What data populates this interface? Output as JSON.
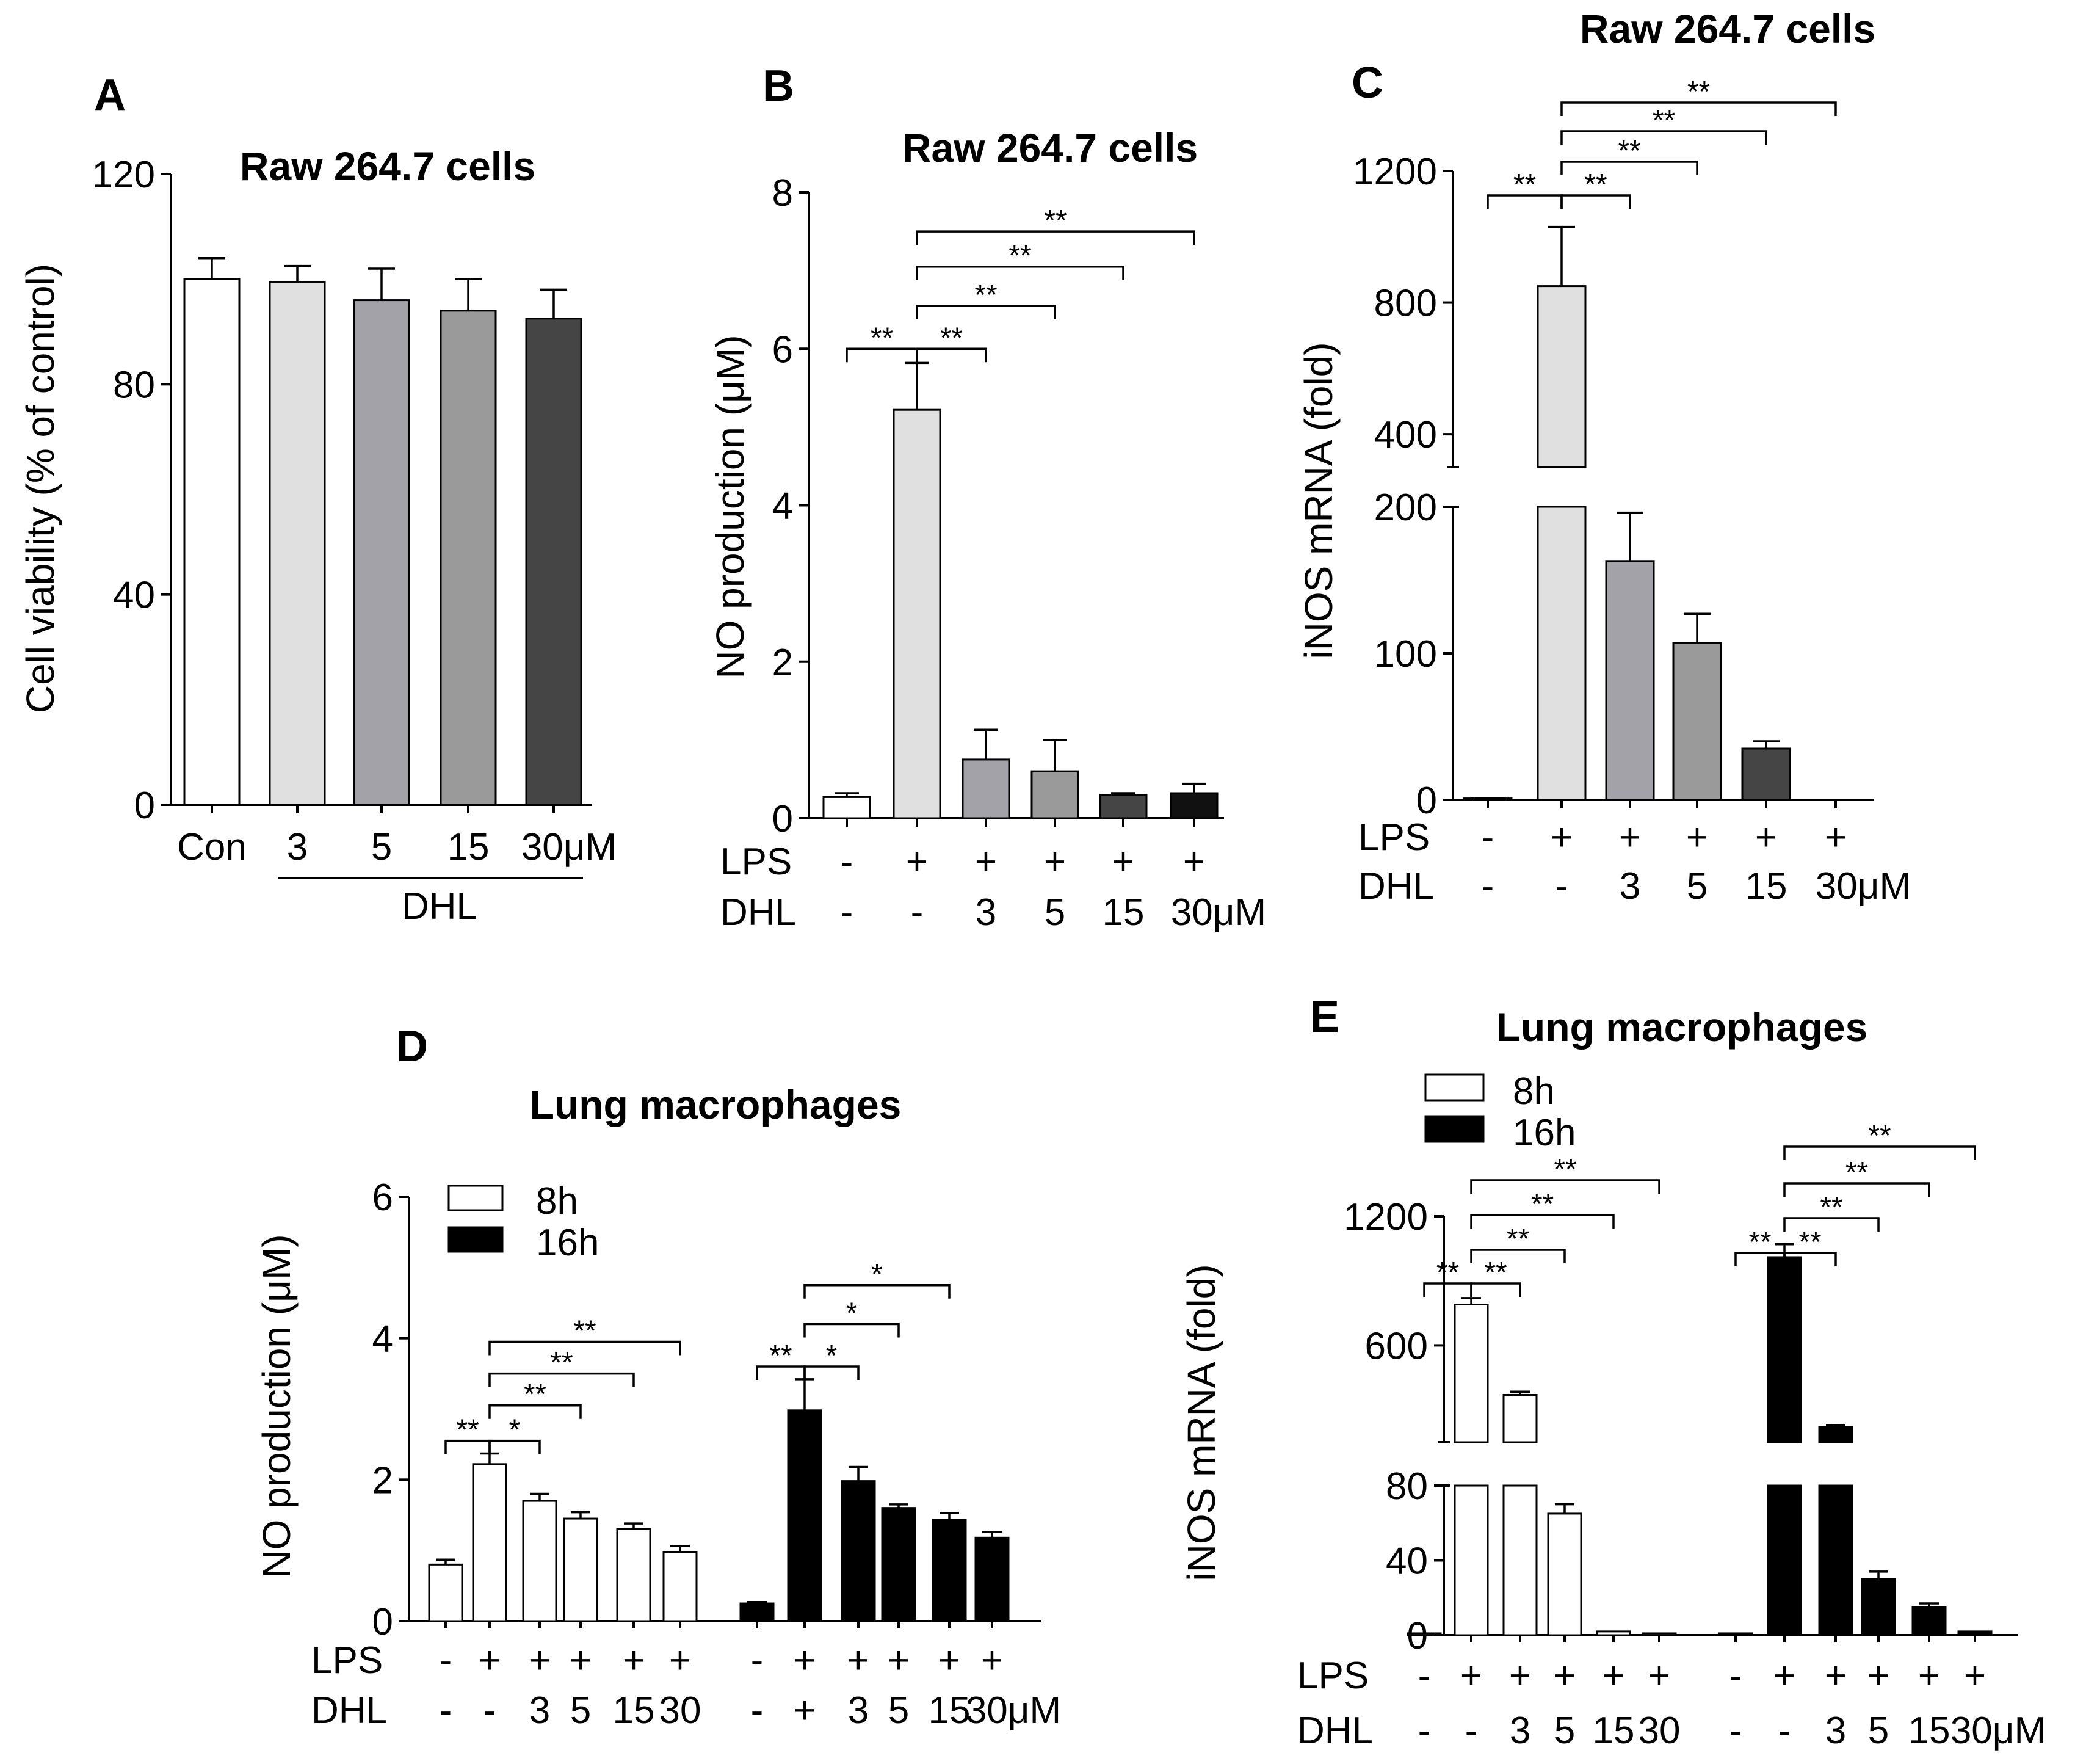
{
  "chart_data": [
    {
      "panel": "A",
      "type": "bar",
      "title": "Raw 264.7 cells",
      "ylabel": "Cell viability (% of control)",
      "ylim": [
        0,
        120
      ],
      "yticks": [
        "0",
        "40",
        "80",
        "120"
      ],
      "categories": [
        "Con",
        "3",
        "5",
        "15",
        "30μM"
      ],
      "group_label": "DHL",
      "values": [
        100,
        99.5,
        96,
        94,
        92.5
      ],
      "errors": [
        4,
        3,
        6,
        6,
        5.5
      ],
      "colors": [
        "#ffffff",
        "#e0e0e0",
        "#a2a2a8",
        "#9a9a9a",
        "#454545"
      ]
    },
    {
      "panel": "B",
      "type": "bar",
      "title": "Raw 264.7 cells",
      "ylabel": "NO production (μM)",
      "ylim": [
        0,
        8
      ],
      "yticks": [
        "0",
        "2",
        "4",
        "6",
        "8"
      ],
      "rows": [
        {
          "label": "LPS",
          "values": [
            "-",
            "+",
            "+",
            "+",
            "+",
            "+"
          ]
        },
        {
          "label": "DHL",
          "values": [
            "-",
            "-",
            "3",
            "5",
            "15",
            "30μM"
          ]
        }
      ],
      "values": [
        0.27,
        5.22,
        0.75,
        0.6,
        0.3,
        0.32
      ],
      "errors": [
        0.05,
        0.6,
        0.38,
        0.4,
        0.02,
        0.12
      ],
      "colors": [
        "#ffffff",
        "#e0e0e0",
        "#a2a2a8",
        "#9a9a9a",
        "#454545",
        "#111111"
      ],
      "brackets": [
        {
          "a": 0,
          "b": 1,
          "y": 6.0,
          "label": "**"
        },
        {
          "a": 1,
          "b": 2,
          "y": 6.0,
          "label": "**"
        },
        {
          "a": 1,
          "b": 3,
          "y": 6.55,
          "label": "**"
        },
        {
          "a": 1,
          "b": 4,
          "y": 7.05,
          "label": "**"
        },
        {
          "a": 1,
          "b": 5,
          "y": 7.5,
          "label": "**"
        }
      ]
    },
    {
      "panel": "C",
      "type": "bar",
      "title": "Raw 264.7 cells",
      "ylabel": "iNOS mRNA (fold)",
      "ylim": [
        0,
        1200
      ],
      "axis_break": [
        200,
        300
      ],
      "yticks": [
        "0",
        "100",
        "200",
        "400",
        "800",
        "1200"
      ],
      "rows": [
        {
          "label": "LPS",
          "values": [
            "-",
            "+",
            "+",
            "+",
            "+",
            "+"
          ]
        },
        {
          "label": "DHL",
          "values": [
            "-",
            "-",
            "3",
            "5",
            "15",
            "30μM"
          ]
        }
      ],
      "values": [
        1,
        850,
        163,
        107,
        35,
        0
      ],
      "errors": [
        0,
        180,
        33,
        20,
        5,
        0
      ],
      "colors": [
        "#ffffff",
        "#e0e0e0",
        "#a2a2a8",
        "#9a9a9a",
        "#454545",
        "#111111"
      ],
      "brackets": [
        {
          "a": 0,
          "b": 1,
          "y": 1095,
          "label": "**"
        },
        {
          "a": 1,
          "b": 2,
          "y": 1095,
          "label": "**"
        },
        {
          "a": 1,
          "b": 3,
          "y": 1165,
          "label": "**"
        },
        {
          "a": 1,
          "b": 4,
          "y": 1235,
          "label": "**"
        },
        {
          "a": 1,
          "b": 5,
          "y": 1300,
          "label": "**"
        }
      ]
    },
    {
      "panel": "D",
      "type": "bar",
      "title": "Lung macrophages",
      "ylabel": "NO production (μM)",
      "ylim": [
        0,
        6
      ],
      "yticks": [
        "0",
        "2",
        "4",
        "6"
      ],
      "legend": [
        {
          "name": "8h",
          "color": "#ffffff"
        },
        {
          "name": "16h",
          "color": "#000000"
        }
      ],
      "rows": [
        {
          "label": "LPS",
          "values": [
            "-",
            "+",
            "+",
            "+",
            "+",
            "+",
            "-",
            "+",
            "+",
            "+",
            "+",
            "+"
          ]
        },
        {
          "label": "DHL",
          "values": [
            "-",
            "-",
            "3",
            "5",
            "15",
            "30",
            "-",
            "+",
            "3",
            "5",
            "15",
            "30μM"
          ]
        }
      ],
      "series": [
        {
          "name": "8h",
          "values": [
            0.8,
            2.22,
            1.7,
            1.45,
            1.3,
            0.98
          ],
          "errors": [
            0.07,
            0.15,
            0.1,
            0.09,
            0.08,
            0.08
          ]
        },
        {
          "name": "16h",
          "values": [
            0.25,
            2.98,
            1.98,
            1.6,
            1.43,
            1.18
          ],
          "errors": [
            0.02,
            0.44,
            0.2,
            0.05,
            0.1,
            0.08
          ]
        }
      ],
      "brackets": [
        {
          "series": 0,
          "a": 0,
          "b": 1,
          "y": 2.55,
          "label": "**"
        },
        {
          "series": 0,
          "a": 1,
          "b": 2,
          "y": 2.55,
          "label": "*"
        },
        {
          "series": 0,
          "a": 1,
          "b": 3,
          "y": 3.05,
          "label": "**"
        },
        {
          "series": 0,
          "a": 1,
          "b": 4,
          "y": 3.5,
          "label": "**"
        },
        {
          "series": 0,
          "a": 1,
          "b": 5,
          "y": 3.95,
          "label": "**"
        },
        {
          "series": 1,
          "a": 0,
          "b": 1,
          "y": 3.6,
          "label": "**"
        },
        {
          "series": 1,
          "a": 1,
          "b": 2,
          "y": 3.6,
          "label": "*"
        },
        {
          "series": 1,
          "a": 1,
          "b": 3,
          "y": 4.2,
          "label": "*"
        },
        {
          "series": 1,
          "a": 1,
          "b": 4,
          "y": 4.75,
          "label": "*"
        }
      ]
    },
    {
      "panel": "E",
      "type": "bar",
      "title": "Lung macrophages",
      "ylabel": "iNOS mRNA (fold)",
      "ylim": [
        0,
        1200
      ],
      "axis_break": [
        80,
        150
      ],
      "yticks": [
        "0",
        "40",
        "80",
        "600",
        "1200"
      ],
      "legend": [
        {
          "name": "8h",
          "color": "#ffffff"
        },
        {
          "name": "16h",
          "color": "#000000"
        }
      ],
      "rows": [
        {
          "label": "LPS",
          "values": [
            "-",
            "+",
            "+",
            "+",
            "+",
            "+",
            "-",
            "+",
            "+",
            "+",
            "+",
            "+"
          ]
        },
        {
          "label": "DHL",
          "values": [
            "-",
            "-",
            "3",
            "5",
            "15",
            "30",
            "-",
            "-",
            "3",
            "5",
            "15",
            "30μM"
          ]
        }
      ],
      "series": [
        {
          "name": "8h",
          "values": [
            1,
            790,
            370,
            65,
            2,
            1
          ],
          "errors": [
            0,
            30,
            15,
            5,
            0,
            0
          ]
        },
        {
          "name": "16h",
          "values": [
            1,
            1010,
            220,
            30,
            15,
            2
          ],
          "errors": [
            0,
            60,
            10,
            4,
            2,
            0
          ]
        }
      ],
      "brackets": [
        {
          "series": 0,
          "a": 0,
          "b": 1,
          "y": 880,
          "label": "**"
        },
        {
          "series": 0,
          "a": 1,
          "b": 2,
          "y": 880,
          "label": "**"
        },
        {
          "series": 0,
          "a": 1,
          "b": 3,
          "y": 1060,
          "label": "**"
        },
        {
          "series": 0,
          "a": 1,
          "b": 4,
          "y": 1230,
          "label": "**"
        },
        {
          "series": 0,
          "a": 1,
          "b": 5,
          "y": 1410,
          "label": "**"
        },
        {
          "series": 1,
          "a": 0,
          "b": 1,
          "y": 1190,
          "label": "**"
        },
        {
          "series": 1,
          "a": 1,
          "b": 2,
          "y": 1190,
          "label": "**"
        },
        {
          "series": 1,
          "a": 1,
          "b": 3,
          "y": 1360,
          "label": "**"
        },
        {
          "series": 1,
          "a": 1,
          "b": 4,
          "y": 1530,
          "label": "**"
        },
        {
          "series": 1,
          "a": 1,
          "b": 5,
          "y": 1710,
          "label": "**"
        }
      ]
    }
  ]
}
